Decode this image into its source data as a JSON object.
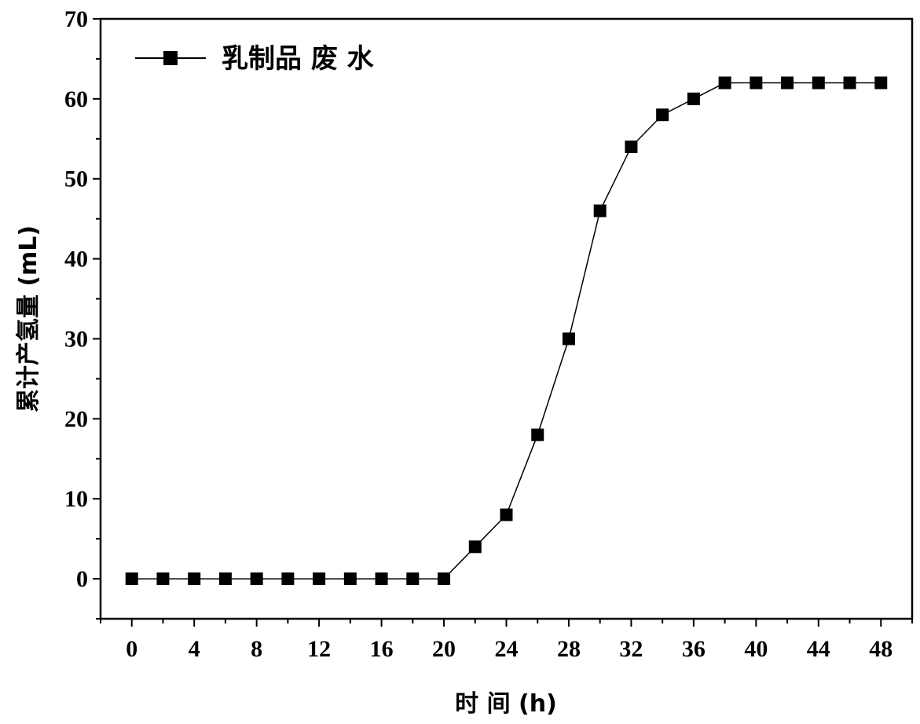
{
  "chart_data": {
    "type": "line",
    "x": [
      0,
      2,
      4,
      6,
      8,
      10,
      12,
      14,
      16,
      18,
      20,
      22,
      24,
      26,
      28,
      30,
      32,
      34,
      36,
      38,
      40,
      42,
      44,
      46,
      48
    ],
    "series": [
      {
        "name": "乳制品 废 水",
        "values": [
          0,
          0,
          0,
          0,
          0,
          0,
          0,
          0,
          0,
          0,
          0,
          4,
          8,
          18,
          30,
          46,
          54,
          58,
          60,
          62,
          62,
          62,
          62,
          62,
          62
        ],
        "marker": "square",
        "color": "#000000"
      }
    ],
    "xlabel": "时 间 (h)",
    "ylabel": "累计产氢量 (mL)",
    "xlim": [
      -2,
      50
    ],
    "ylim": [
      -5,
      70
    ],
    "xticks": [
      0,
      4,
      8,
      12,
      16,
      20,
      24,
      28,
      32,
      36,
      40,
      44,
      48
    ],
    "yticks": [
      0,
      10,
      20,
      30,
      40,
      50,
      60,
      70
    ],
    "legend_position": "top-left",
    "grid": false
  }
}
